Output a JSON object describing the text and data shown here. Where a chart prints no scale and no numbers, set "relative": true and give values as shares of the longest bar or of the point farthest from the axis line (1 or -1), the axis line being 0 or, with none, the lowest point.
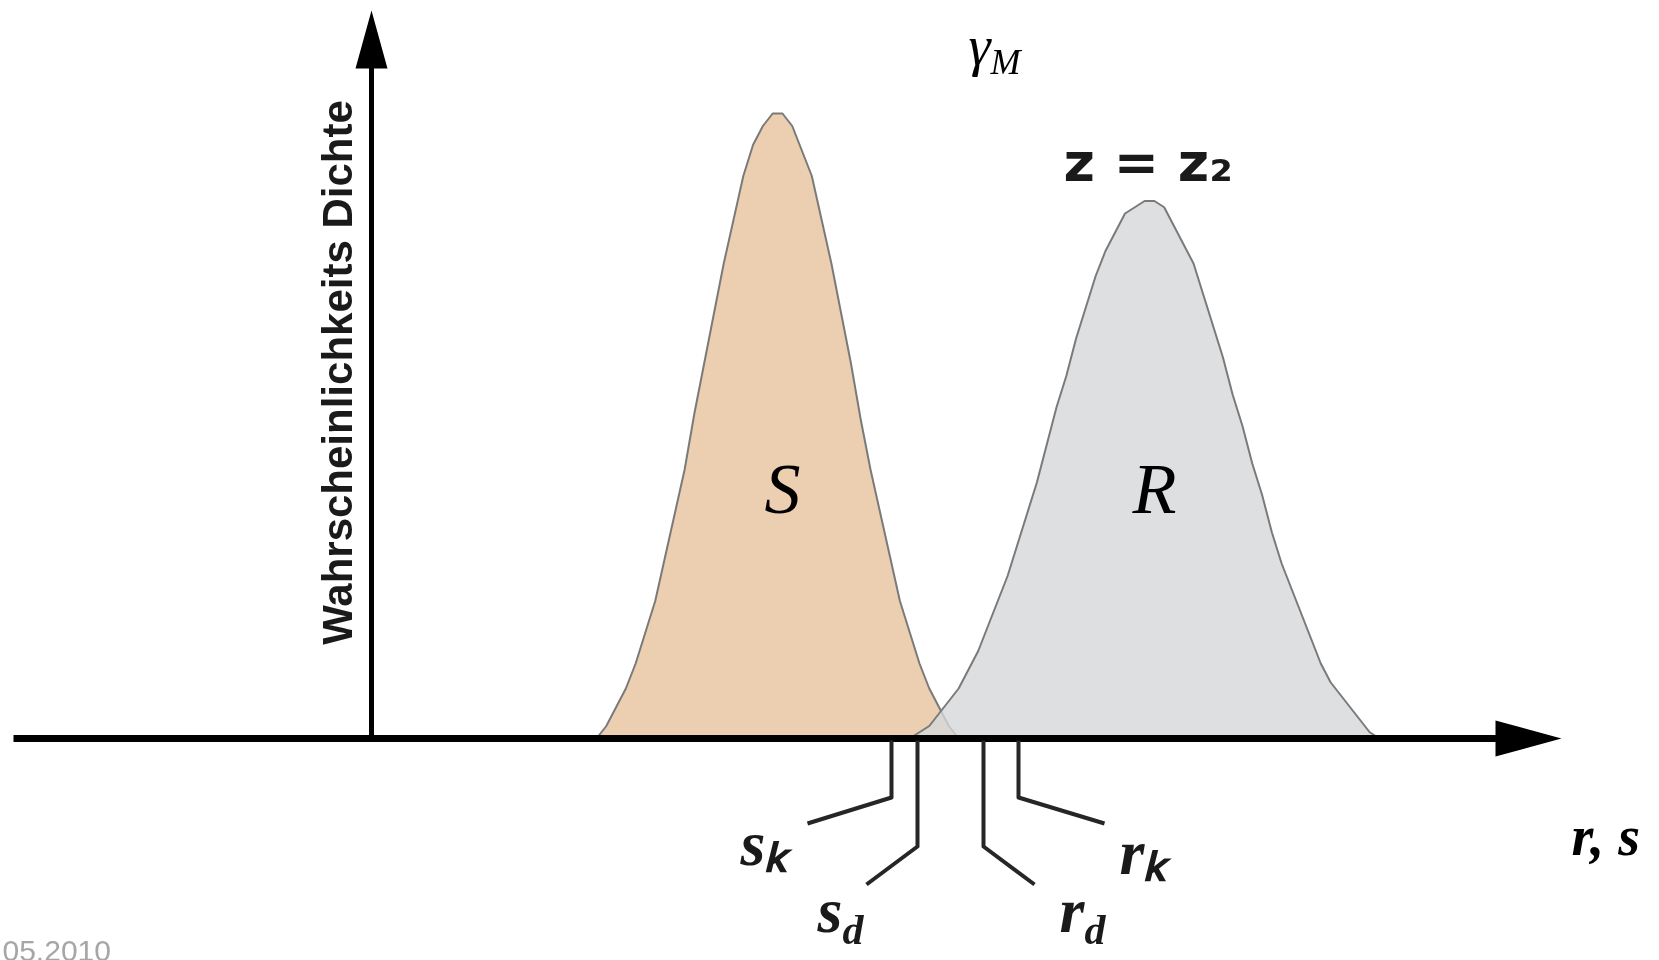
{
  "chart_data": {
    "type": "area",
    "relative": true,
    "xlabel": "r, s",
    "categories": [
      null,
      null,
      null,
      null,
      null,
      null,
      null,
      null,
      null,
      null,
      null,
      null,
      null,
      null,
      null,
      null,
      null,
      null,
      null,
      null,
      null,
      null,
      null,
      null,
      null,
      null,
      null,
      null,
      null,
      null,
      null,
      null,
      null,
      null,
      null,
      null,
      null,
      null,
      null,
      null,
      null,
      null,
      null,
      null,
      null,
      null,
      null,
      null,
      null,
      null,
      null,
      null,
      null,
      null,
      null,
      null,
      null,
      null,
      null,
      null,
      null,
      null,
      null,
      null,
      null,
      null,
      null,
      null,
      null,
      null,
      null,
      null,
      null,
      null,
      null,
      null,
      null,
      null,
      null,
      null,
      null
    ],
    "series": [
      {
        "name": "S",
        "color": "#ebcfb0",
        "values": [
          0,
          0.02,
          0.05,
          0.08,
          0.12,
          0.17,
          0.22,
          0.29,
          0.36,
          0.43,
          0.52,
          0.6,
          0.68,
          0.76,
          0.83,
          0.9,
          0.95,
          0.98,
          1,
          1,
          0.98,
          0.94,
          0.9,
          0.83,
          0.76,
          0.68,
          0.6,
          0.51,
          0.43,
          0.36,
          0.29,
          0.22,
          0.17,
          0.12,
          0.08,
          0.05,
          0.02,
          0,
          null,
          null,
          null,
          null,
          null,
          null,
          null,
          null,
          null,
          null,
          null,
          null,
          null,
          null,
          null,
          null,
          null,
          null,
          null,
          null,
          null,
          null,
          null,
          null,
          null,
          null,
          null,
          null,
          null,
          null,
          null,
          null,
          null,
          null,
          null,
          null,
          null,
          null,
          null,
          null,
          null,
          null,
          null
        ]
      },
      {
        "name": "R",
        "color": "#d6d7d9",
        "values": [
          null,
          null,
          null,
          null,
          null,
          null,
          null,
          null,
          null,
          null,
          null,
          null,
          null,
          null,
          null,
          null,
          null,
          null,
          null,
          null,
          null,
          null,
          null,
          null,
          null,
          null,
          null,
          null,
          null,
          null,
          null,
          null,
          0,
          0.01,
          0.02,
          0.04,
          0.06,
          0.08,
          0.11,
          0.14,
          0.18,
          0.22,
          0.26,
          0.31,
          0.36,
          0.41,
          0.47,
          0.53,
          0.58,
          0.64,
          0.69,
          0.74,
          0.78,
          0.81,
          0.84,
          0.85,
          0.86,
          0.86,
          0.85,
          0.82,
          0.79,
          0.76,
          0.71,
          0.66,
          0.61,
          0.55,
          0.5,
          0.44,
          0.39,
          0.33,
          0.28,
          0.24,
          0.2,
          0.16,
          0.12,
          0.09,
          0.07,
          0.05,
          0.03,
          0.01,
          0
        ]
      }
    ],
    "ref_lines": [
      {
        "axis": "y",
        "value": 0,
        "color": "#000000"
      }
    ],
    "annotations": [
      "Wahrscheinlichkeits Dichte",
      "z = z₂",
      "sₖ",
      "s$_{d}$",
      "r$_{d}$",
      "rₖ",
      "γ$_{M}$",
      "05.2010"
    ]
  }
}
